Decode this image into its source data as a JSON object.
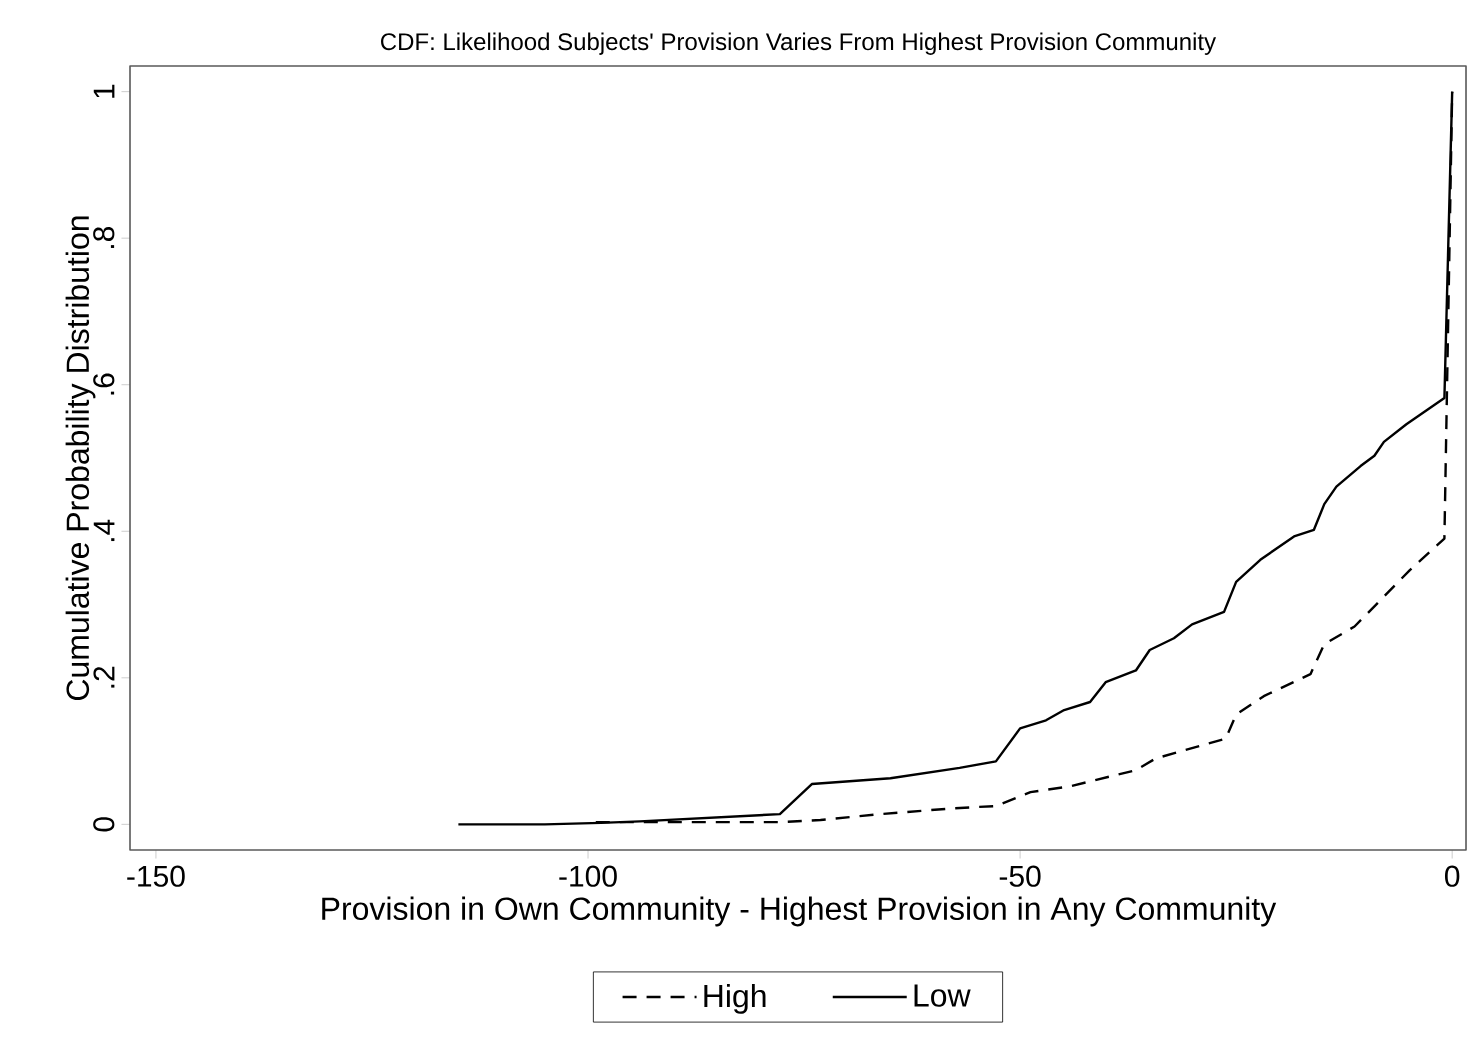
{
  "chart_data": {
    "type": "line",
    "title": "CDF: Likelihood Subjects' Provision Varies From Highest Provision Community",
    "xlabel": "Provision in Own Community - Highest Provision in Any Community",
    "ylabel": "Cumulative Probability Distribution",
    "xlim": [
      -153,
      1.6
    ],
    "ylim": [
      -0.035,
      1.035
    ],
    "xticks": [
      -150,
      -100,
      -50,
      0
    ],
    "yticks": [
      0,
      {
        "value": 0.2,
        "label": ".2"
      },
      {
        "value": 0.4,
        "label": ".4"
      },
      {
        "value": 0.6,
        "label": ".6"
      },
      {
        "value": 0.8,
        "label": ".8"
      },
      1
    ],
    "grid": false,
    "legend": "bottom",
    "marker": "none",
    "series": [
      {
        "name": "High",
        "color": "#000000",
        "line_style": "dashed",
        "x": [
          -99.1,
          -77.8,
          -73.1,
          -66.2,
          -57.6,
          -52.8,
          -48.8,
          -44.2,
          -36.6,
          -34.3,
          -26.2,
          -25,
          -21.8,
          -16.4,
          -14.8,
          -11.3,
          -8.3,
          -4.9,
          -0.9,
          0
        ],
        "values": [
          0.003,
          0.003,
          0.006,
          0.014,
          0.022,
          0.025,
          0.044,
          0.052,
          0.074,
          0.09,
          0.117,
          0.15,
          0.175,
          0.205,
          0.246,
          0.27,
          0.306,
          0.347,
          0.39,
          1.0
        ]
      },
      {
        "name": "Low",
        "color": "#000000",
        "line_style": "solid",
        "x": [
          -115,
          -105,
          -98.5,
          -94,
          -77.8,
          -74.1,
          -65,
          -57,
          -52.8,
          -50,
          -47,
          -44.9,
          -41.9,
          -40.1,
          -36.6,
          -35,
          -32.2,
          -30.1,
          -26.4,
          -25,
          -22.2,
          -19.9,
          -18.3,
          -16,
          -14.8,
          -13.4,
          -10.6,
          -9,
          -7.9,
          -5.3,
          -0.9,
          0
        ],
        "values": [
          0,
          0,
          0.002,
          0.004,
          0.014,
          0.055,
          0.063,
          0.077,
          0.086,
          0.131,
          0.142,
          0.156,
          0.167,
          0.194,
          0.21,
          0.238,
          0.254,
          0.273,
          0.29,
          0.331,
          0.361,
          0.38,
          0.393,
          0.402,
          0.437,
          0.461,
          0.489,
          0.503,
          0.522,
          0.546,
          0.582,
          1.0
        ]
      }
    ]
  }
}
